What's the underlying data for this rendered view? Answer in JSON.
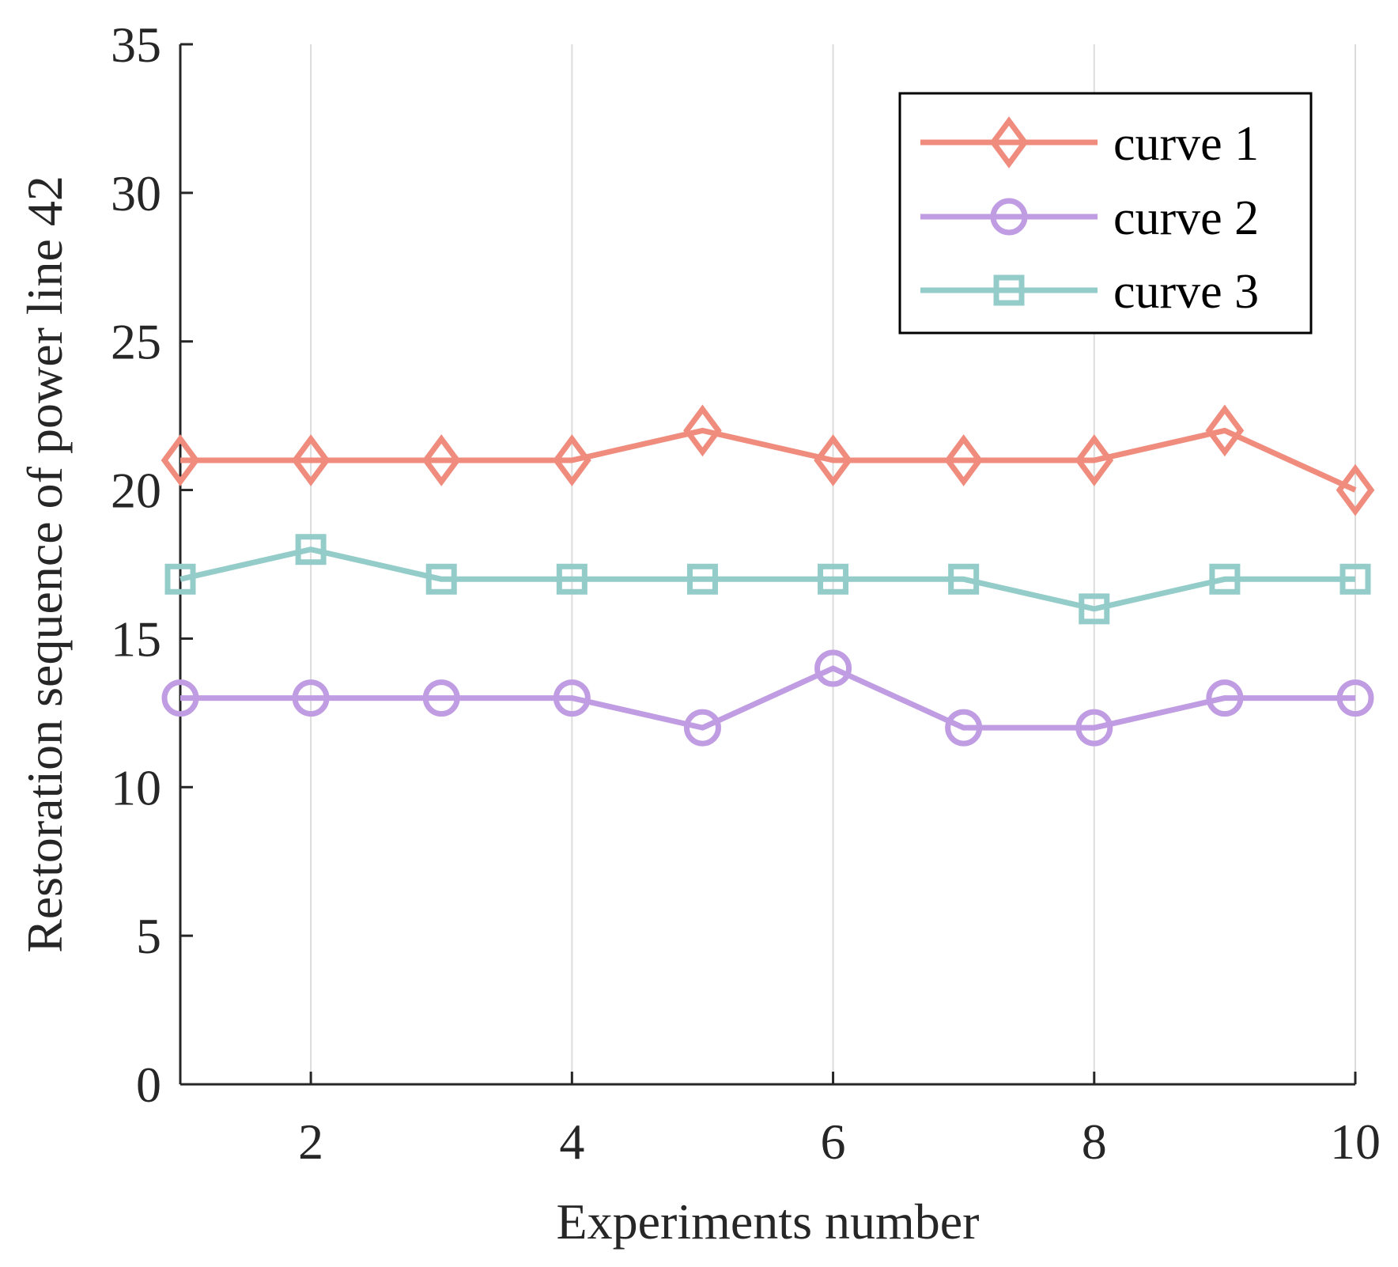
{
  "chart_data": {
    "type": "line",
    "xlabel": "Experiments number",
    "ylabel": "Restoration sequence of power line 42",
    "xlim": [
      1,
      10
    ],
    "ylim": [
      0,
      35
    ],
    "xticks": [
      2,
      4,
      6,
      8,
      10
    ],
    "yticks": [
      0,
      5,
      10,
      15,
      20,
      25,
      30,
      35
    ],
    "grid": "vertical",
    "legend_position": "top-right",
    "x": [
      1,
      2,
      3,
      4,
      5,
      6,
      7,
      8,
      9,
      10
    ],
    "series": [
      {
        "name": "curve 1",
        "marker": "diamond",
        "color": "#F08C7E",
        "values": [
          21,
          21,
          21,
          21,
          22,
          21,
          21,
          21,
          22,
          20
        ]
      },
      {
        "name": "curve 2",
        "marker": "circle",
        "color": "#C09CE2",
        "values": [
          13,
          13,
          13,
          13,
          12,
          14,
          12,
          12,
          13,
          13
        ]
      },
      {
        "name": "curve 3",
        "marker": "square",
        "color": "#93CCC8",
        "values": [
          17,
          18,
          17,
          17,
          17,
          17,
          17,
          16,
          17,
          17
        ]
      }
    ]
  }
}
